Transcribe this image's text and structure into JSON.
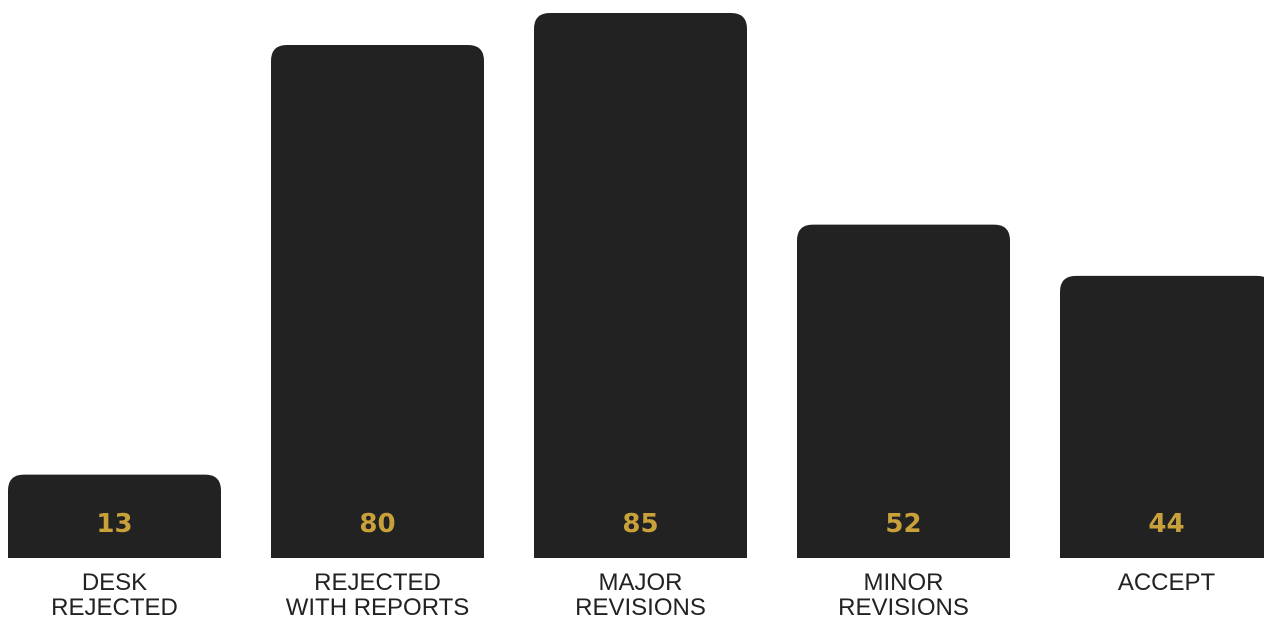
{
  "chart_data": {
    "type": "bar",
    "categories": [
      [
        "DESK",
        "REJECTED"
      ],
      [
        "REJECTED",
        "WITH REPORTS"
      ],
      [
        "MAJOR",
        "REVISIONS"
      ],
      [
        "MINOR",
        "REVISIONS"
      ],
      [
        "ACCEPT"
      ]
    ],
    "values": [
      13,
      80,
      85,
      52,
      44
    ],
    "value_labels": [
      "13",
      "80",
      "85",
      "52",
      "44"
    ],
    "title": "",
    "xlabel": "",
    "ylabel": "",
    "ylim": [
      0,
      85
    ],
    "grid": false,
    "legend": "none"
  },
  "colors": {
    "bar": "#222222",
    "value_label": "#c9a13b",
    "category_label": "#222222",
    "background": "#ffffff"
  }
}
